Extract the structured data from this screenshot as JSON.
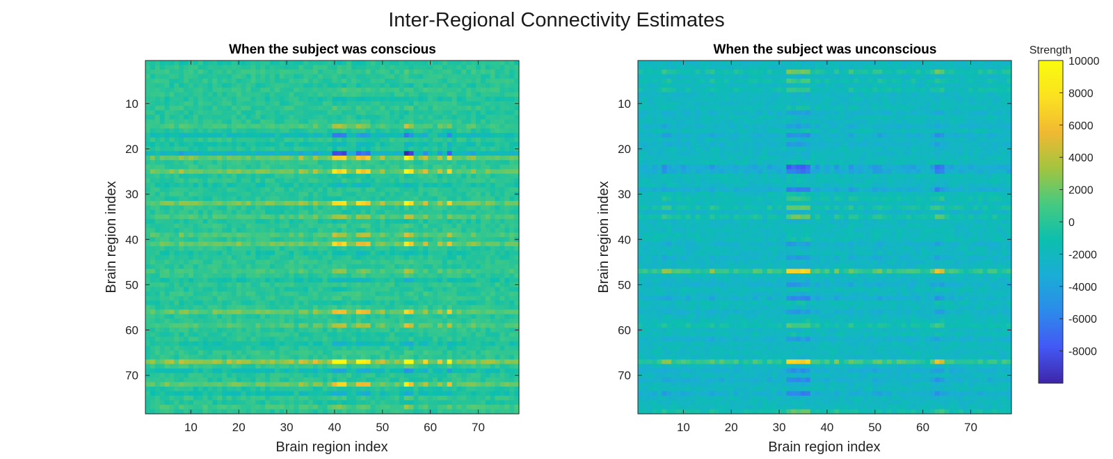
{
  "figure": {
    "title": "Inter-Regional Connectivity Estimates"
  },
  "chart_data": [
    {
      "type": "heatmap",
      "title": "When the subject was conscious",
      "xlabel": "Brain region index",
      "ylabel": "Brain region index",
      "n": 78,
      "x_ticks": [
        10,
        20,
        30,
        40,
        50,
        60,
        70
      ],
      "y_ticks": [
        10,
        20,
        30,
        40,
        50,
        60,
        70
      ],
      "x_tick_labels": [
        "10",
        "20",
        "30",
        "40",
        "50",
        "60",
        "70"
      ],
      "y_tick_labels": [
        "10",
        "20",
        "30",
        "40",
        "50",
        "60",
        "70"
      ],
      "baseline": 0,
      "row_weights": [
        {
          "row": 9,
          "w": -0.15
        },
        {
          "row": 15,
          "w": 0.4
        },
        {
          "row": 17,
          "w": -0.7
        },
        {
          "row": 19,
          "w": -0.3
        },
        {
          "row": 21,
          "w": -1.0
        },
        {
          "row": 22,
          "w": 0.9
        },
        {
          "row": 25,
          "w": 0.95
        },
        {
          "row": 28,
          "w": -0.25
        },
        {
          "row": 32,
          "w": 1.0
        },
        {
          "row": 35,
          "w": 0.45
        },
        {
          "row": 39,
          "w": 0.5
        },
        {
          "row": 41,
          "w": 0.85
        },
        {
          "row": 43,
          "w": -0.2
        },
        {
          "row": 47,
          "w": 0.3
        },
        {
          "row": 49,
          "w": -0.3
        },
        {
          "row": 56,
          "w": 0.8
        },
        {
          "row": 59,
          "w": 0.5
        },
        {
          "row": 63,
          "w": -0.35
        },
        {
          "row": 67,
          "w": 1.3
        },
        {
          "row": 69,
          "w": -0.5
        },
        {
          "row": 72,
          "w": 0.8
        },
        {
          "row": 74,
          "w": -0.4
        },
        {
          "row": 77,
          "w": 0.3
        }
      ],
      "col_weights": [
        {
          "col": 8,
          "w": 0.45
        },
        {
          "col": 12,
          "w": 0.25
        },
        {
          "col": 16,
          "w": 0.3
        },
        {
          "col": 20,
          "w": 0.35
        },
        {
          "col": 27,
          "w": 0.3
        },
        {
          "col": 33,
          "w": 0.5
        },
        {
          "col": 36,
          "w": 0.5
        },
        {
          "col": 40,
          "w": 1.0
        },
        {
          "col": 41,
          "w": 1.0
        },
        {
          "col": 42,
          "w": 1.0
        },
        {
          "col": 45,
          "w": 0.85
        },
        {
          "col": 46,
          "w": 0.85
        },
        {
          "col": 47,
          "w": 0.85
        },
        {
          "col": 50,
          "w": 0.45
        },
        {
          "col": 55,
          "w": 1.25
        },
        {
          "col": 56,
          "w": 1.0
        },
        {
          "col": 59,
          "w": 0.6
        },
        {
          "col": 62,
          "w": 0.55
        },
        {
          "col": 64,
          "w": 0.9
        },
        {
          "col": 69,
          "w": 0.4
        },
        {
          "col": 72,
          "w": 0.3
        }
      ],
      "amplitude": 8000,
      "noise": 800
    },
    {
      "type": "heatmap",
      "title": "When the subject was unconscious",
      "xlabel": "Brain region index",
      "ylabel": "Brain region index",
      "n": 78,
      "x_ticks": [
        10,
        20,
        30,
        40,
        50,
        60,
        70
      ],
      "y_ticks": [
        10,
        20,
        30,
        40,
        50,
        60,
        70
      ],
      "x_tick_labels": [
        "10",
        "20",
        "30",
        "40",
        "50",
        "60",
        "70"
      ],
      "y_tick_labels": [
        "10",
        "20",
        "30",
        "40",
        "50",
        "60",
        "70"
      ],
      "baseline": -2000,
      "row_weights": [
        {
          "row": 3,
          "w": 0.6
        },
        {
          "row": 5,
          "w": 0.35
        },
        {
          "row": 7,
          "w": 0.3
        },
        {
          "row": 12,
          "w": -0.3
        },
        {
          "row": 15,
          "w": -0.3
        },
        {
          "row": 17,
          "w": -0.45
        },
        {
          "row": 19,
          "w": -0.3
        },
        {
          "row": 24,
          "w": -0.7
        },
        {
          "row": 25,
          "w": -0.6
        },
        {
          "row": 29,
          "w": -0.55
        },
        {
          "row": 31,
          "w": 0.3
        },
        {
          "row": 33,
          "w": 0.5
        },
        {
          "row": 35,
          "w": 0.5
        },
        {
          "row": 41,
          "w": -0.3
        },
        {
          "row": 44,
          "w": -0.3
        },
        {
          "row": 47,
          "w": 1.25
        },
        {
          "row": 50,
          "w": -0.35
        },
        {
          "row": 53,
          "w": -0.45
        },
        {
          "row": 56,
          "w": -0.35
        },
        {
          "row": 59,
          "w": 0.45
        },
        {
          "row": 62,
          "w": -0.35
        },
        {
          "row": 67,
          "w": 1.2
        },
        {
          "row": 69,
          "w": -0.4
        },
        {
          "row": 71,
          "w": -0.45
        },
        {
          "row": 74,
          "w": -0.5
        },
        {
          "row": 78,
          "w": 0.45
        }
      ],
      "col_weights": [
        {
          "col": 6,
          "w": 0.6
        },
        {
          "col": 7,
          "w": 0.5
        },
        {
          "col": 16,
          "w": 0.45
        },
        {
          "col": 28,
          "w": 0.35
        },
        {
          "col": 30,
          "w": 0.3
        },
        {
          "col": 32,
          "w": 1.0
        },
        {
          "col": 33,
          "w": 1.0
        },
        {
          "col": 34,
          "w": 1.0
        },
        {
          "col": 35,
          "w": 1.0
        },
        {
          "col": 36,
          "w": 1.0
        },
        {
          "col": 38,
          "w": 0.4
        },
        {
          "col": 42,
          "w": 0.5
        },
        {
          "col": 45,
          "w": 0.5
        },
        {
          "col": 50,
          "w": 0.45
        },
        {
          "col": 51,
          "w": 0.5
        },
        {
          "col": 55,
          "w": 0.35
        },
        {
          "col": 62,
          "w": 0.45
        },
        {
          "col": 63,
          "w": 0.85
        },
        {
          "col": 64,
          "w": 0.7
        },
        {
          "col": 72,
          "w": 0.3
        },
        {
          "col": 75,
          "w": 0.3
        }
      ],
      "amplitude": 7500,
      "noise": 700
    }
  ],
  "colorbar": {
    "label": "Strength",
    "min": -10000,
    "max": 10000,
    "ticks": [
      10000,
      8000,
      6000,
      4000,
      2000,
      0,
      -2000,
      -4000,
      -6000,
      -8000
    ],
    "tick_labels": [
      "10000",
      "8000",
      "6000",
      "4000",
      "2000",
      "0",
      "-2000",
      "-4000",
      "-6000",
      "-8000"
    ],
    "colormap": [
      "#3e26a8",
      "#4358f5",
      "#2d8aea",
      "#1aadd6",
      "#0cbfae",
      "#46ca80",
      "#a3c43f",
      "#f1b932",
      "#fbe220",
      "#f9fb0e"
    ]
  }
}
